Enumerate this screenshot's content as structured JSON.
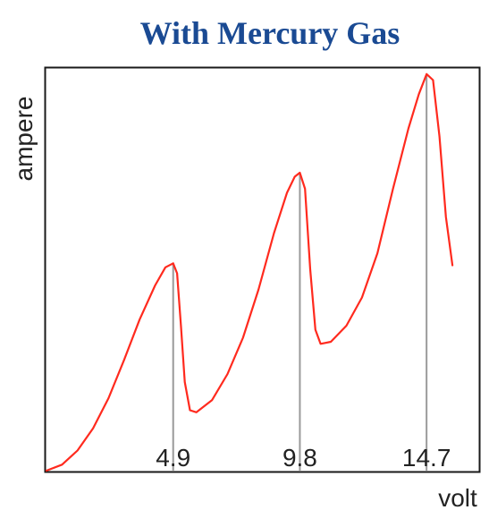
{
  "chart_data": {
    "type": "line",
    "title": "With Mercury Gas",
    "xlabel": "volt",
    "ylabel": "ampere",
    "xlim": [
      0,
      16.7
    ],
    "ylim": [
      0,
      10
    ],
    "grid": false,
    "peak_lines": [
      4.9,
      9.8,
      14.7
    ],
    "x_tick_labels": [
      "4.9",
      "9.8",
      "14.7"
    ],
    "series": [
      {
        "color": "#ff2a1e",
        "points": [
          [
            0.0,
            0.0
          ],
          [
            0.6,
            0.15
          ],
          [
            1.2,
            0.5
          ],
          [
            1.8,
            1.05
          ],
          [
            2.4,
            1.8
          ],
          [
            3.0,
            2.75
          ],
          [
            3.6,
            3.75
          ],
          [
            4.2,
            4.6
          ],
          [
            4.6,
            5.05
          ],
          [
            4.9,
            5.15
          ],
          [
            5.05,
            4.9
          ],
          [
            5.2,
            3.6
          ],
          [
            5.35,
            2.2
          ],
          [
            5.55,
            1.5
          ],
          [
            5.8,
            1.45
          ],
          [
            6.4,
            1.75
          ],
          [
            7.0,
            2.4
          ],
          [
            7.6,
            3.3
          ],
          [
            8.2,
            4.5
          ],
          [
            8.8,
            5.9
          ],
          [
            9.3,
            6.9
          ],
          [
            9.6,
            7.3
          ],
          [
            9.8,
            7.4
          ],
          [
            10.0,
            7.0
          ],
          [
            10.2,
            5.0
          ],
          [
            10.4,
            3.5
          ],
          [
            10.6,
            3.15
          ],
          [
            11.0,
            3.2
          ],
          [
            11.6,
            3.6
          ],
          [
            12.2,
            4.3
          ],
          [
            12.8,
            5.4
          ],
          [
            13.4,
            7.0
          ],
          [
            14.0,
            8.5
          ],
          [
            14.4,
            9.35
          ],
          [
            14.7,
            9.85
          ],
          [
            14.95,
            9.7
          ],
          [
            15.2,
            8.3
          ],
          [
            15.45,
            6.3
          ],
          [
            15.7,
            5.1
          ]
        ]
      }
    ]
  },
  "colors": {
    "title": "#1a4a93",
    "curve": "#ff2a1e",
    "peak_line": "#9a9a9a",
    "frame": "#1a1a1a"
  }
}
